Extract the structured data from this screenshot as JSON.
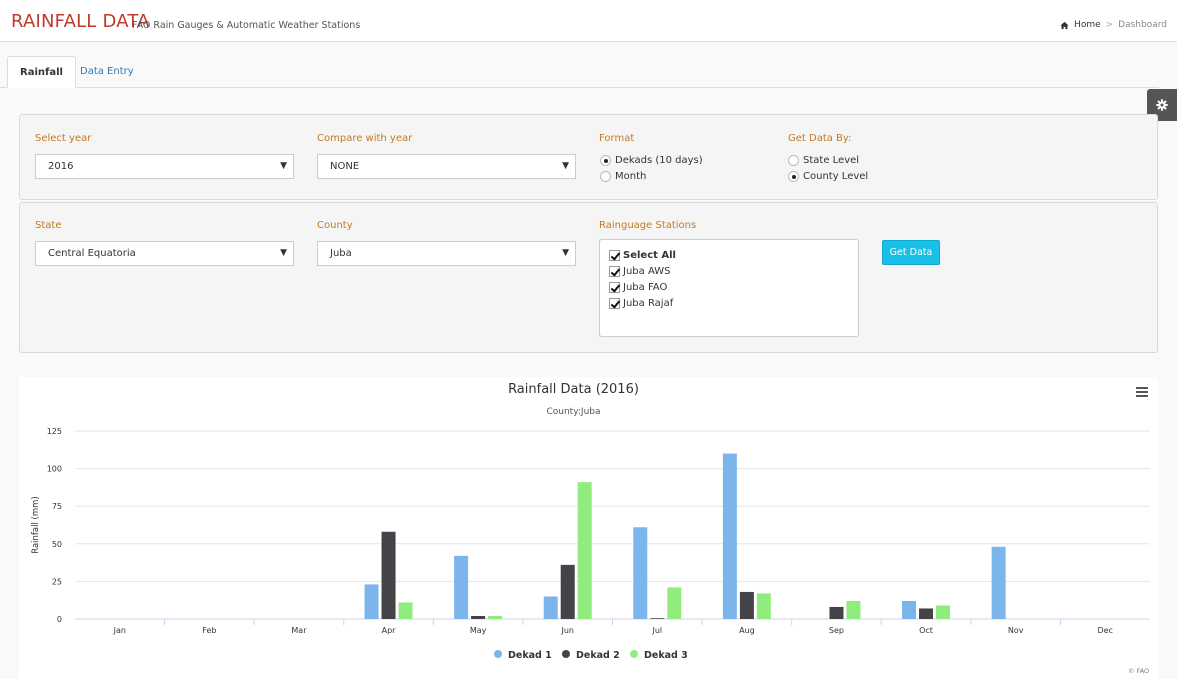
{
  "header": {
    "title": "RAINFALL DATA",
    "subtitle": "FAO Rain Gauges & Automatic Weather Stations",
    "breadcrumb": {
      "home": "Home",
      "separator": ">",
      "current": "Dashboard"
    }
  },
  "tabs": [
    {
      "label": "Rainfall",
      "active": true
    },
    {
      "label": "Data Entry",
      "active": false
    }
  ],
  "filters": {
    "year": {
      "label": "Select year",
      "value": "2016"
    },
    "compare": {
      "label": "Compare with year",
      "value": "NONE"
    },
    "format": {
      "label": "Format",
      "options": [
        {
          "label": "Dekads (10 days)",
          "selected": true
        },
        {
          "label": "Month",
          "selected": false
        }
      ]
    },
    "get_by": {
      "label": "Get Data By:",
      "options": [
        {
          "label": "State Level",
          "selected": false
        },
        {
          "label": "County Level",
          "selected": true
        }
      ]
    },
    "state": {
      "label": "State",
      "value": "Central Equatoria"
    },
    "county": {
      "label": "County",
      "value": "Juba"
    },
    "stations": {
      "label": "Rainguage Stations",
      "items": [
        {
          "label": "Select All",
          "checked": true
        },
        {
          "label": "Juba AWS",
          "checked": true
        },
        {
          "label": "Juba FAO",
          "checked": true
        },
        {
          "label": "Juba Rajaf",
          "checked": true
        }
      ]
    },
    "submit_label": "Get Data"
  },
  "chart_data": {
    "type": "bar",
    "title": "Rainfall Data (2016)",
    "subtitle": "County:Juba",
    "xlabel": "",
    "ylabel": "Rainfall (mm)",
    "ylim": [
      0,
      125
    ],
    "yticks": [
      0,
      25,
      50,
      75,
      100,
      125
    ],
    "grid": true,
    "legend_position": "bottom",
    "categories": [
      "Jan",
      "Feb",
      "Mar",
      "Apr",
      "May",
      "Jun",
      "Jul",
      "Aug",
      "Sep",
      "Oct",
      "Nov",
      "Dec"
    ],
    "series": [
      {
        "name": "Dekad 1",
        "color": "#7cb5ec",
        "values": [
          0,
          0,
          0,
          23,
          42,
          15,
          61,
          110,
          0,
          12,
          48,
          0
        ]
      },
      {
        "name": "Dekad 2",
        "color": "#434348",
        "values": [
          0,
          0,
          0,
          58,
          2,
          36,
          0.5,
          18,
          8,
          7,
          0,
          0
        ]
      },
      {
        "name": "Dekad 3",
        "color": "#90ed7d",
        "values": [
          0,
          0,
          0,
          11,
          2,
          91,
          21,
          17,
          12,
          9,
          0,
          0
        ]
      }
    ],
    "credit": "© FAO"
  }
}
